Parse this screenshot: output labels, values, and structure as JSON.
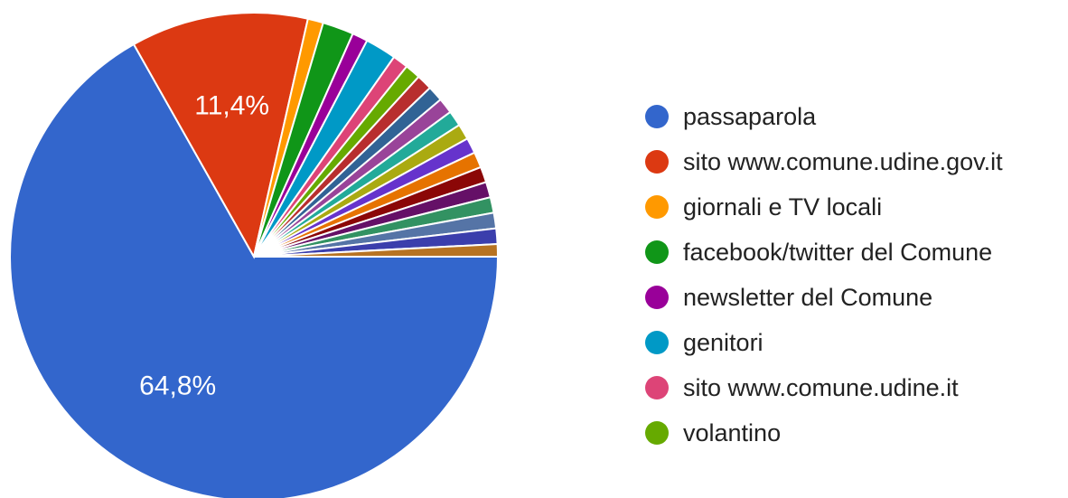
{
  "chart_data": {
    "type": "pie",
    "title": "",
    "legend_position": "right",
    "slices": [
      {
        "label": "passaparola",
        "value": 64.8,
        "color": "#3366cc",
        "display_label": "64,8%"
      },
      {
        "label": "sito www.comune.udine.gov.it",
        "value": 11.4,
        "color": "#dc3912",
        "display_label": "11,4%"
      },
      {
        "label": "giornali e TV locali",
        "value": 1.0,
        "color": "#ff9900"
      },
      {
        "label": "facebook/twitter del Comune",
        "value": 2.0,
        "color": "#109618"
      },
      {
        "label": "newsletter del Comune",
        "value": 1.0,
        "color": "#990099"
      },
      {
        "label": "genitori",
        "value": 2.0,
        "color": "#0099c6"
      },
      {
        "label": "sito www.comune.udine.it",
        "value": 1.0,
        "color": "#dd4477"
      },
      {
        "label": "volantino",
        "value": 1.0,
        "color": "#66aa00"
      },
      {
        "label": null,
        "value": 1.0,
        "color": "#b82e2e"
      },
      {
        "label": null,
        "value": 1.0,
        "color": "#316395"
      },
      {
        "label": null,
        "value": 1.0,
        "color": "#994499"
      },
      {
        "label": null,
        "value": 1.0,
        "color": "#22aa99"
      },
      {
        "label": null,
        "value": 1.0,
        "color": "#aaaa11"
      },
      {
        "label": null,
        "value": 1.0,
        "color": "#6633cc"
      },
      {
        "label": null,
        "value": 1.0,
        "color": "#e67300"
      },
      {
        "label": null,
        "value": 1.0,
        "color": "#8b0707"
      },
      {
        "label": null,
        "value": 1.0,
        "color": "#651067"
      },
      {
        "label": null,
        "value": 1.0,
        "color": "#329262"
      },
      {
        "label": null,
        "value": 1.0,
        "color": "#5574a6"
      },
      {
        "label": null,
        "value": 1.0,
        "color": "#3b3eac"
      },
      {
        "label": null,
        "value": 0.8,
        "color": "#b77322"
      }
    ]
  }
}
